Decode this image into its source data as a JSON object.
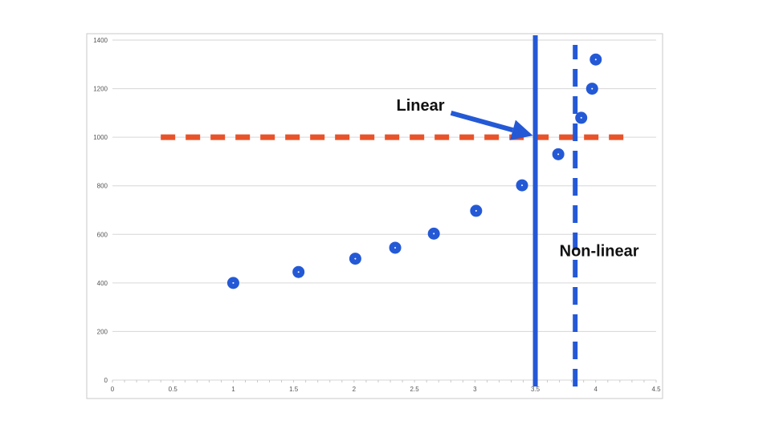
{
  "chart_data": {
    "type": "scatter",
    "title": "",
    "xlabel": "",
    "ylabel": "",
    "xlim": [
      0,
      4.5
    ],
    "ylim": [
      0,
      1400
    ],
    "x_ticks": [
      0,
      0.5,
      1,
      1.5,
      2,
      2.5,
      3,
      3.5,
      4,
      4.5
    ],
    "x_tick_labels": [
      "0",
      "0.5",
      "1",
      "1.5",
      "2",
      "2.5",
      "3",
      "3.5",
      "4",
      "4.5"
    ],
    "y_ticks": [
      0,
      200,
      400,
      600,
      800,
      1000,
      1200,
      1400
    ],
    "y_tick_labels": [
      "0",
      "200",
      "400",
      "600",
      "800",
      "1000",
      "1200",
      "1400"
    ],
    "grid": "horizontal",
    "series": [
      {
        "x": [
          1.0,
          1.54,
          2.01,
          2.34,
          2.66,
          3.01,
          3.39,
          3.69,
          3.88,
          3.97,
          4.0
        ],
        "y": [
          400,
          445,
          500,
          545,
          603,
          697,
          802,
          930,
          1080,
          1200,
          1320
        ],
        "color": "#2459d6"
      }
    ],
    "reference_lines": [
      {
        "orientation": "horizontal",
        "value": 1000,
        "from": 0.4,
        "to": 4.3,
        "style": "dashed",
        "color": "#e8532a"
      },
      {
        "orientation": "vertical",
        "value": 3.5,
        "from": 0,
        "to": 1420,
        "style": "solid",
        "color": "#2459d6"
      },
      {
        "orientation": "vertical",
        "value": 3.83,
        "from": 0,
        "to": 1380,
        "style": "dashed",
        "color": "#2459d6"
      }
    ],
    "annotations": [
      {
        "text": "Linear",
        "x": 2.35,
        "y": 1110,
        "arrow_to": [
          3.5,
          1000
        ]
      },
      {
        "text": "Non-linear",
        "x": 3.7,
        "y": 510
      }
    ]
  }
}
